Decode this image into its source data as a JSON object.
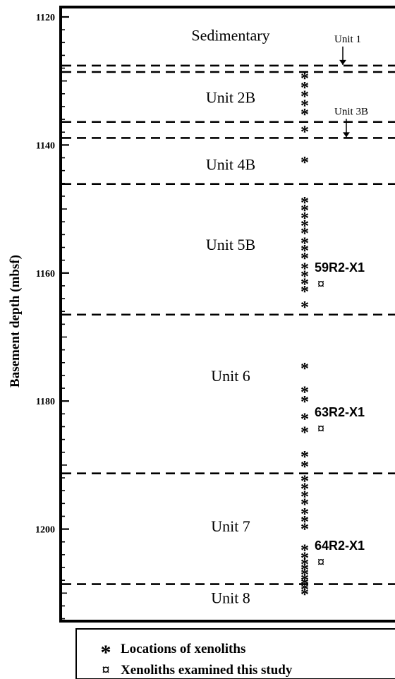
{
  "y_axis": {
    "label": "Basement depth (mbsf)",
    "ticks": [
      "1120",
      "1140",
      "1160",
      "1180",
      "1200"
    ]
  },
  "units": [
    {
      "label": "Sedimentary",
      "depth": 1122.8
    },
    {
      "label": "Unit 2B",
      "depth": 1132.5
    },
    {
      "label": "Unit 4B",
      "depth": 1143.0
    },
    {
      "label": "Unit 5B",
      "depth": 1155.5
    },
    {
      "label": "Unit 6",
      "depth": 1176.0
    },
    {
      "label": "Unit 7",
      "depth": 1199.5
    },
    {
      "label": "Unit 8",
      "depth": 1210.7
    }
  ],
  "boundaries": [
    1127.6,
    1128.6,
    1136.4,
    1138.9,
    1146.1,
    1166.5,
    1191.3,
    1208.6
  ],
  "thin_units": [
    {
      "label": "Unit 1",
      "depth": 1127.6
    },
    {
      "label": "Unit 3B",
      "depth": 1138.9
    }
  ],
  "xenolith_depths": [
    1129.5,
    1130.9,
    1132.3,
    1133.7,
    1135.1,
    1137.8,
    1142.6,
    1148.9,
    1150.1,
    1151.3,
    1152.5,
    1153.7,
    1155.2,
    1156.4,
    1157.6,
    1159.2,
    1160.4,
    1161.6,
    1162.8,
    1165.2,
    1174.8,
    1178.5,
    1180.0,
    1182.7,
    1184.8,
    1188.6,
    1190.1,
    1192.4,
    1193.6,
    1194.8,
    1196.0,
    1197.5,
    1198.7,
    1199.9,
    1203.2,
    1204.4,
    1205.4,
    1206.2,
    1207.0,
    1207.8,
    1208.5,
    1209.3,
    1210.1
  ],
  "studied_xenoliths": [
    {
      "label": "59R2-X1",
      "depth": 1161.7
    },
    {
      "label": "63R2-X1",
      "depth": 1184.3
    },
    {
      "label": "64R2-X1",
      "depth": 1205.1
    }
  ],
  "legend": {
    "star_label": "Locations of xenoliths",
    "studied_label": "Xenoliths examined this study"
  }
}
